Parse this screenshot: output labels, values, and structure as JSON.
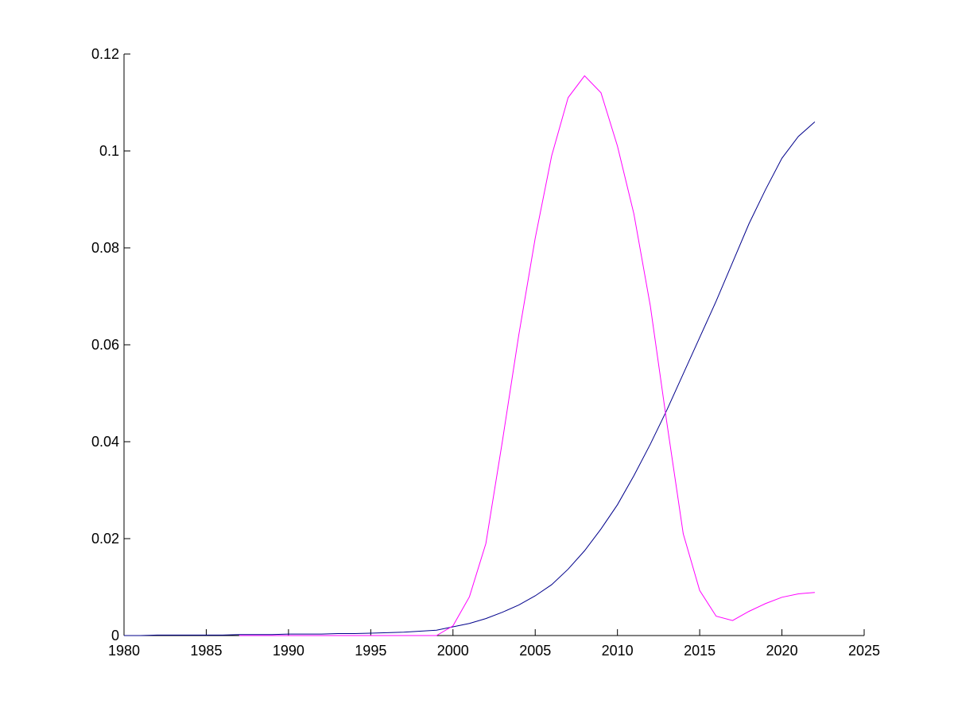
{
  "chart_data": {
    "type": "line",
    "x": [
      1980,
      1981,
      1982,
      1983,
      1984,
      1985,
      1986,
      1987,
      1988,
      1989,
      1990,
      1991,
      1992,
      1993,
      1994,
      1995,
      1996,
      1997,
      1998,
      1999,
      2000,
      2001,
      2002,
      2003,
      2004,
      2005,
      2006,
      2007,
      2008,
      2009,
      2010,
      2011,
      2012,
      2013,
      2014,
      2015,
      2016,
      2017,
      2018,
      2019,
      2020,
      2021,
      2022
    ],
    "series": [
      {
        "color": "#00008b",
        "values": [
          0,
          0,
          0.0001,
          0.0001,
          0.0001,
          0.0001,
          0.0001,
          0.0002,
          0.0002,
          0.0002,
          0.0003,
          0.0003,
          0.0003,
          0.0004,
          0.0004,
          0.0005,
          0.0006,
          0.0007,
          0.0009,
          0.0011,
          0.0018,
          0.0025,
          0.0035,
          0.0048,
          0.0063,
          0.0082,
          0.0105,
          0.0137,
          0.0175,
          0.022,
          0.027,
          0.033,
          0.0395,
          0.0465,
          0.054,
          0.0615,
          0.069,
          0.077,
          0.085,
          0.092,
          0.0985,
          0.103,
          0.106
        ]
      },
      {
        "color": "#ff00ff",
        "values": [
          null,
          null,
          null,
          null,
          null,
          null,
          null,
          0,
          0,
          0,
          0,
          0,
          0,
          0,
          0,
          0,
          0,
          0,
          0,
          0,
          0.002,
          0.008,
          0.019,
          0.04,
          0.062,
          0.082,
          0.099,
          0.111,
          0.1155,
          0.112,
          0.101,
          0.087,
          0.068,
          0.044,
          0.021,
          0.0093,
          0.004,
          0.0031,
          0.005,
          0.0066,
          0.0079,
          0.0086,
          0.0089
        ]
      }
    ],
    "xlim": [
      1980,
      2025
    ],
    "xticks": [
      1980,
      1985,
      1990,
      1995,
      2000,
      2005,
      2010,
      2015,
      2020,
      2025
    ],
    "ylim": [
      0,
      0.12
    ],
    "yticks": [
      0,
      0.02,
      0.04,
      0.06,
      0.08,
      0.1,
      0.12
    ],
    "grid": false
  }
}
